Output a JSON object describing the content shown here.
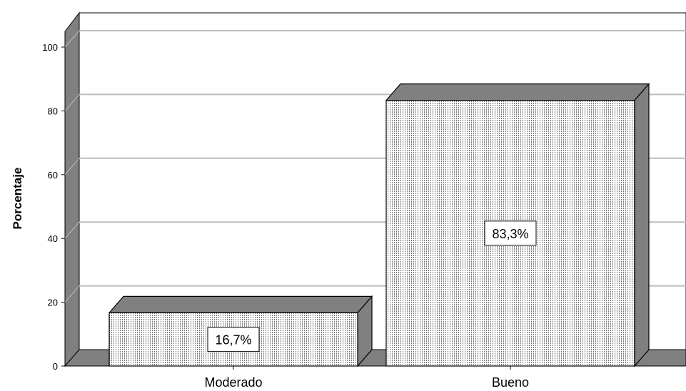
{
  "chart_data": {
    "type": "bar",
    "categories": [
      "Moderado",
      "Bueno"
    ],
    "values": [
      16.7,
      83.3
    ],
    "data_labels": [
      "16,7%",
      "83,3%"
    ],
    "ylabel": "Porcentaje",
    "ylim": [
      0,
      105
    ],
    "yticks": [
      0,
      20,
      40,
      60,
      80,
      100
    ],
    "grid": true,
    "style": "3d",
    "colors": {
      "bar_face": "#ffffff",
      "bar_pattern": "#777777",
      "bar_side": "#808080",
      "outline": "#000000",
      "floor": "#808080",
      "gridline": "#bdbdbd"
    }
  }
}
